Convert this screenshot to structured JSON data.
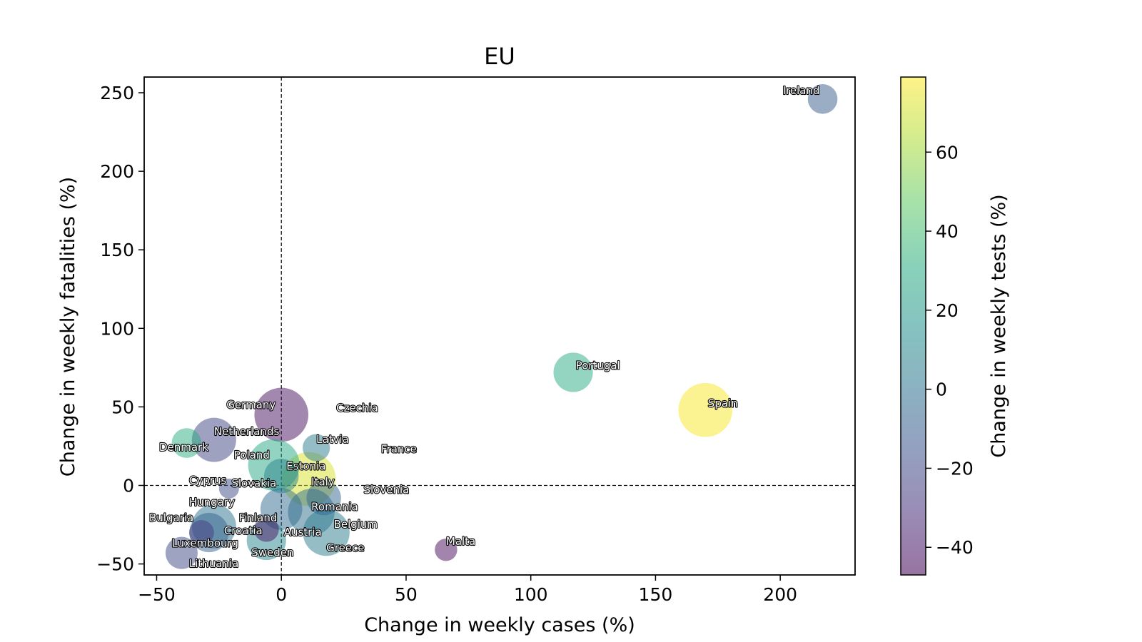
{
  "chart_data": {
    "type": "scatter",
    "title": "EU",
    "xlabel": "Change in weekly cases (%)",
    "ylabel": "Change in weekly fatalities (%)",
    "colorbar_label": "Change in weekly tests (%)",
    "xlim": [
      -55,
      230
    ],
    "ylim": [
      -57,
      260
    ],
    "xticks": [
      -50,
      0,
      50,
      100,
      150,
      200
    ],
    "yticks": [
      -50,
      0,
      50,
      100,
      150,
      200,
      250
    ],
    "xtick_labels": [
      "−50",
      "0",
      "50",
      "100",
      "150",
      "200"
    ],
    "ytick_labels": [
      "−50",
      "0",
      "50",
      "100",
      "150",
      "200",
      "250"
    ],
    "colorbar_range": [
      -47,
      79
    ],
    "colorbar_ticks": [
      -40,
      -20,
      0,
      20,
      40,
      60
    ],
    "colorbar_tick_labels": [
      "−40",
      "−20",
      "0",
      "20",
      "40",
      "60"
    ],
    "colormap": "viridis",
    "marker_alpha": 0.5,
    "reference_lines": {
      "x": 0,
      "y": 0,
      "style": "dashed"
    },
    "grid": false,
    "points": [
      {
        "name": "Ireland",
        "x": 217,
        "y": 246,
        "tests": -12,
        "size": 1.0
      },
      {
        "name": "Portugal",
        "x": 117,
        "y": 72,
        "tests": 30,
        "size": 1.4
      },
      {
        "name": "Spain",
        "x": 170,
        "y": 48,
        "tests": 78,
        "size": 2.0
      },
      {
        "name": "Germany",
        "x": 0,
        "y": 45,
        "tests": -42,
        "size": 2.0
      },
      {
        "name": "Czechia",
        "x": null,
        "y": null,
        "tests": null,
        "size": 0
      },
      {
        "name": "Denmark",
        "x": -38,
        "y": 27,
        "tests": 32,
        "size": 1.0
      },
      {
        "name": "Netherlands",
        "x": -27,
        "y": 29,
        "tests": -22,
        "size": 1.6
      },
      {
        "name": "Latvia",
        "x": 14,
        "y": 24,
        "tests": 5,
        "size": 0.9
      },
      {
        "name": "France",
        "x": null,
        "y": null,
        "tests": null,
        "size": 0
      },
      {
        "name": "Poland",
        "x": -3,
        "y": 13,
        "tests": 28,
        "size": 1.9
      },
      {
        "name": "Estonia",
        "x": 0,
        "y": 6,
        "tests": 8,
        "size": 1.2
      },
      {
        "name": "Italy",
        "x": 11,
        "y": 4,
        "tests": 72,
        "size": 2.0
      },
      {
        "name": "Cyprus",
        "x": -21,
        "y": -2,
        "tests": -18,
        "size": 0.6
      },
      {
        "name": "Slovakia",
        "x": 17,
        "y": -8,
        "tests": -5,
        "size": 1.2
      },
      {
        "name": "Slovenia",
        "x": null,
        "y": null,
        "tests": null,
        "size": 0
      },
      {
        "name": "Hungary",
        "x": 0,
        "y": -15,
        "tests": -3,
        "size": 1.5
      },
      {
        "name": "Romania",
        "x": 12,
        "y": -17,
        "tests": -2,
        "size": 1.7
      },
      {
        "name": "Bulgaria",
        "x": -27,
        "y": -26,
        "tests": 0,
        "size": 1.6
      },
      {
        "name": "Finland",
        "x": -6,
        "y": -28,
        "tests": -40,
        "size": 0.8
      },
      {
        "name": "Belgium",
        "x": 18,
        "y": -30,
        "tests": 5,
        "size": 1.7
      },
      {
        "name": "Croatia",
        "x": -29,
        "y": -30,
        "tests": -8,
        "size": 1.4
      },
      {
        "name": "Austria",
        "x": -6,
        "y": -35,
        "tests": 10,
        "size": 1.4
      },
      {
        "name": "Malta",
        "x": 66,
        "y": -41,
        "tests": -44,
        "size": 0.7
      },
      {
        "name": "Greece",
        "x": null,
        "y": null,
        "tests": null,
        "size": 0
      },
      {
        "name": "Luxembourg",
        "x": -40,
        "y": -43,
        "tests": -20,
        "size": 1.1
      },
      {
        "name": "Sweden",
        "x": null,
        "y": null,
        "tests": null,
        "size": 0
      },
      {
        "name": "Lithuania",
        "x": null,
        "y": null,
        "tests": null,
        "size": 0
      },
      {
        "name": "Luxembourg-2",
        "x": -32,
        "y": -30,
        "tests": -25,
        "size": 0.8,
        "unlabeled": true
      }
    ],
    "labels": [
      {
        "text": "Ireland",
        "x": 201,
        "y": 249
      },
      {
        "text": "Portugal",
        "x": 118,
        "y": 74
      },
      {
        "text": "Spain",
        "x": 171,
        "y": 50
      },
      {
        "text": "Germany",
        "x": -22,
        "y": 49
      },
      {
        "text": "Czechia",
        "x": 22,
        "y": 47
      },
      {
        "text": "Netherlands",
        "x": -27,
        "y": 32
      },
      {
        "text": "Denmark",
        "x": -49,
        "y": 22
      },
      {
        "text": "Latvia",
        "x": 14,
        "y": 27
      },
      {
        "text": "France",
        "x": 40,
        "y": 21
      },
      {
        "text": "Poland",
        "x": -19,
        "y": 17
      },
      {
        "text": "Estonia",
        "x": 2,
        "y": 10
      },
      {
        "text": "Cyprus",
        "x": -37,
        "y": 1
      },
      {
        "text": "Italy",
        "x": 12,
        "y": 0
      },
      {
        "text": "Slovakia",
        "x": -20,
        "y": -1
      },
      {
        "text": "Slovenia",
        "x": 33,
        "y": -5
      },
      {
        "text": "Hungary",
        "x": -37,
        "y": -13
      },
      {
        "text": "Romania",
        "x": 12,
        "y": -16
      },
      {
        "text": "Bulgaria",
        "x": -53,
        "y": -23
      },
      {
        "text": "Finland",
        "x": -17,
        "y": -23
      },
      {
        "text": "Belgium",
        "x": 21,
        "y": -27
      },
      {
        "text": "Croatia",
        "x": -23,
        "y": -31
      },
      {
        "text": "Austria",
        "x": 1,
        "y": -32
      },
      {
        "text": "Luxembourg",
        "x": -44,
        "y": -39
      },
      {
        "text": "Malta",
        "x": 66,
        "y": -38
      },
      {
        "text": "Greece",
        "x": 18,
        "y": -42
      },
      {
        "text": "Sweden",
        "x": -12,
        "y": -45
      },
      {
        "text": "Lithuania",
        "x": -37,
        "y": -52
      }
    ]
  }
}
